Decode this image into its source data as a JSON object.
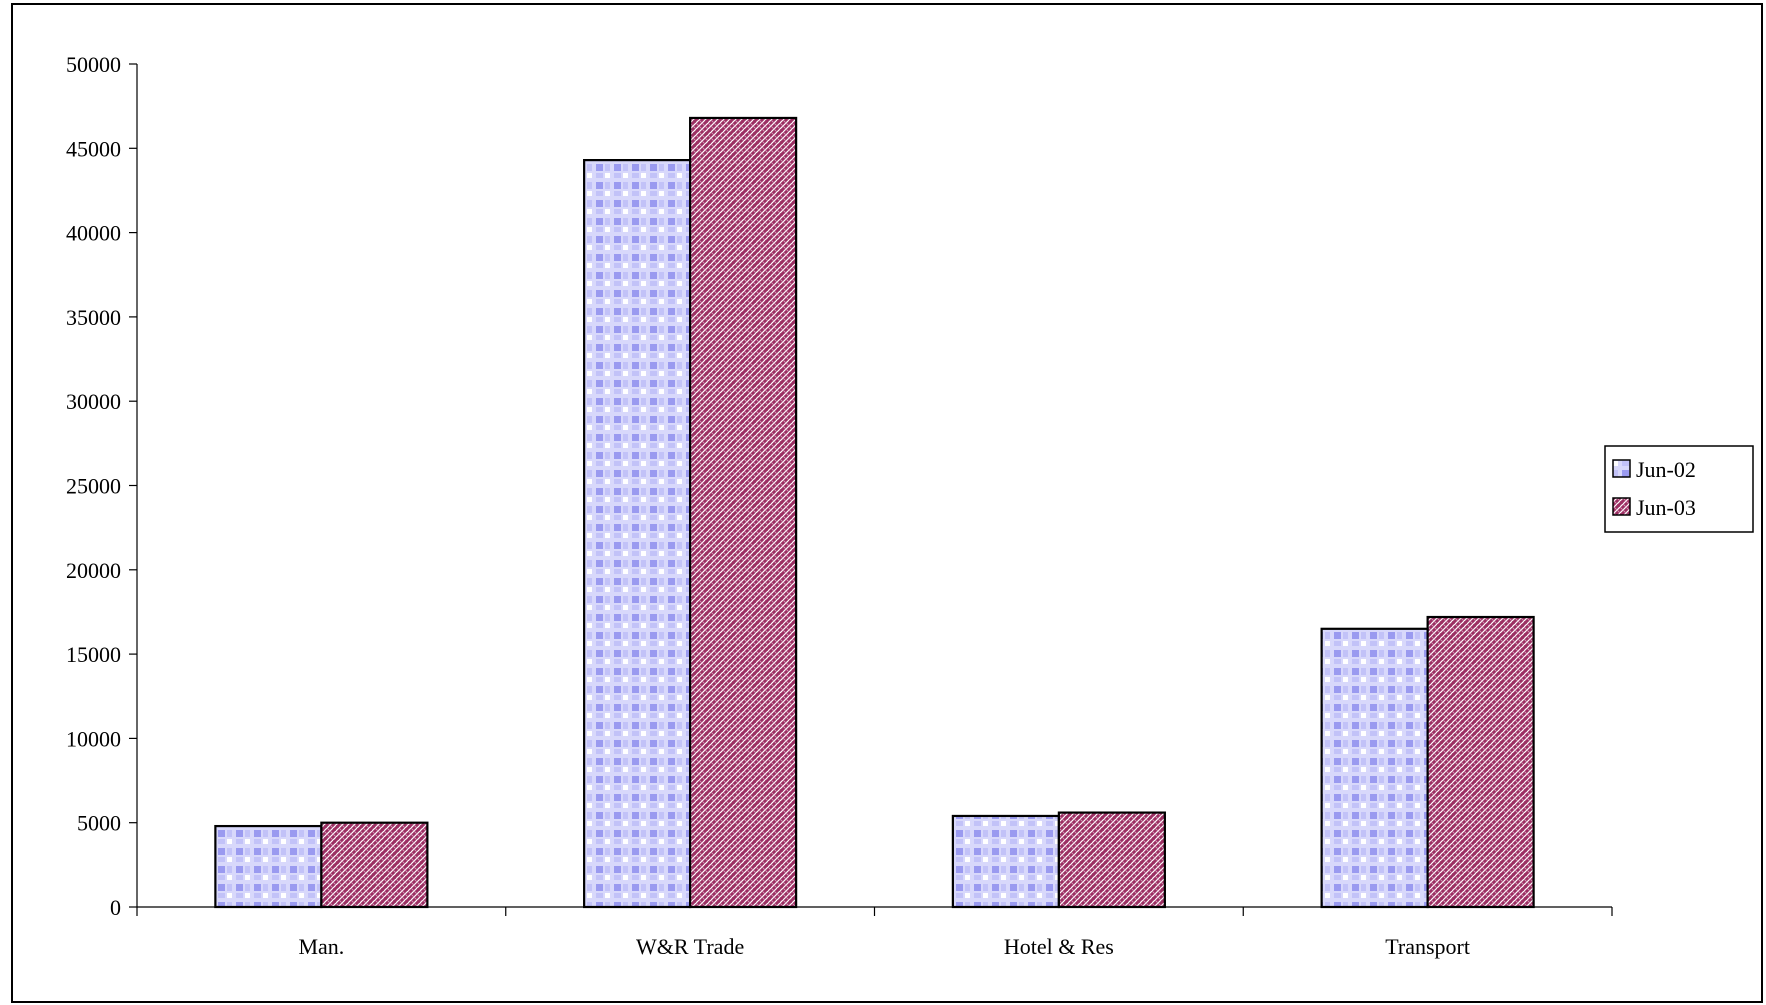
{
  "chart_data": {
    "type": "bar",
    "title": "",
    "xlabel": "",
    "ylabel": "",
    "categories": [
      "Man.",
      "W&R Trade",
      "Hotel & Res",
      "Transport"
    ],
    "series": [
      {
        "name": "Jun-02",
        "values": [
          4800,
          44300,
          5400,
          16500
        ],
        "color": "#a9a9f5",
        "pattern": "checker"
      },
      {
        "name": "Jun-03",
        "values": [
          5000,
          46800,
          5600,
          17200
        ],
        "color": "#9c2f63",
        "pattern": "weave"
      }
    ],
    "ylim": [
      0,
      50000
    ],
    "yticks": [
      0,
      5000,
      10000,
      15000,
      20000,
      25000,
      30000,
      35000,
      40000,
      45000,
      50000
    ],
    "grid": false,
    "legend_position": "right"
  }
}
